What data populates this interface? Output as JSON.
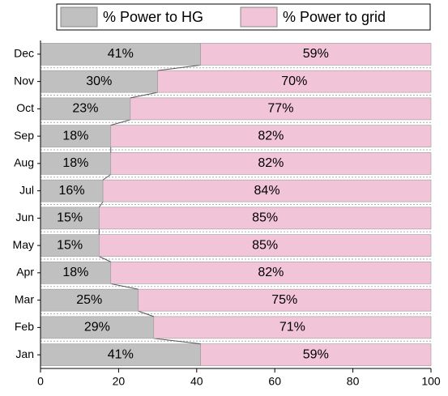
{
  "chart_data": {
    "type": "stacked-barh",
    "categories": [
      "Jan",
      "Feb",
      "Mar",
      "Apr",
      "May",
      "Jun",
      "Jul",
      "Aug",
      "Sep",
      "Oct",
      "Nov",
      "Dec"
    ],
    "series": [
      {
        "name": "% Power to HG",
        "color": "#c0c0c0",
        "values": [
          41,
          29,
          25,
          18,
          15,
          15,
          16,
          18,
          18,
          23,
          30,
          41
        ],
        "value_labels": [
          "41%",
          "29%",
          "25%",
          "18%",
          "15%",
          "15%",
          "16%",
          "18%",
          "18%",
          "23%",
          "30%",
          "41%"
        ]
      },
      {
        "name": "% Power to grid",
        "color": "#f2c4d8",
        "values": [
          59,
          71,
          75,
          82,
          85,
          85,
          84,
          82,
          82,
          77,
          70,
          59
        ],
        "value_labels": [
          "59%",
          "71%",
          "75%",
          "82%",
          "85%",
          "85%",
          "84%",
          "82%",
          "82%",
          "77%",
          "70%",
          "59%"
        ]
      }
    ],
    "xlim": [
      0,
      100
    ],
    "xticks": [
      0,
      20,
      40,
      60,
      80,
      100
    ]
  }
}
